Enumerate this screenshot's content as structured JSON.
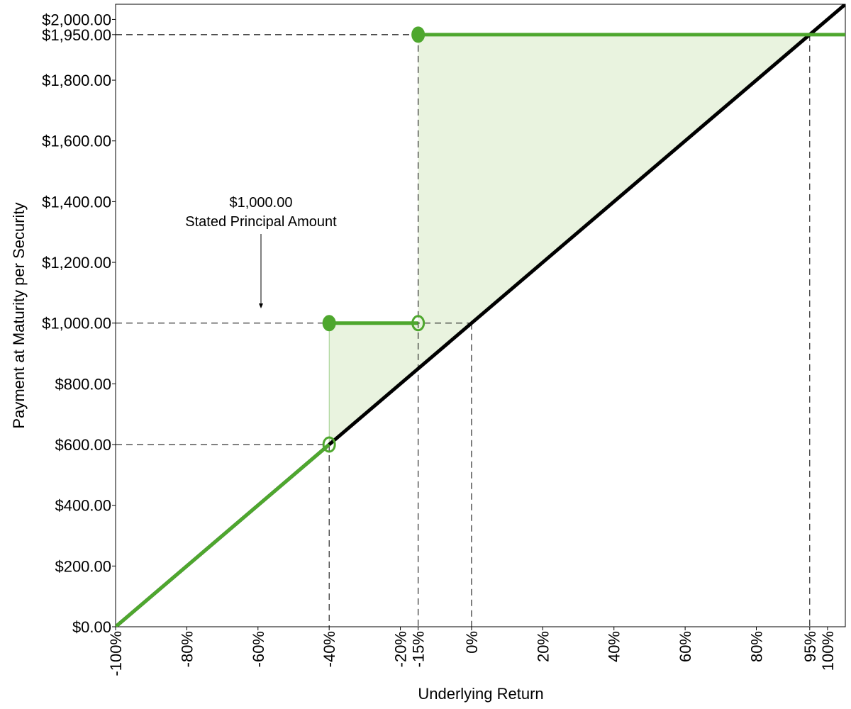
{
  "chart_data": {
    "type": "line",
    "x_label": "Underlying Return",
    "y_label": "Payment at Maturity per Security",
    "annotation": [
      "$1,000.00",
      "Stated Principal Amount"
    ],
    "xlim": [
      -100,
      105
    ],
    "ylim": [
      0,
      2050
    ],
    "xticks": [
      {
        "value": -100,
        "label": "-100%"
      },
      {
        "value": -80,
        "label": "-80%"
      },
      {
        "value": -60,
        "label": "-60%"
      },
      {
        "value": -40,
        "label": "-40%"
      },
      {
        "value": -20,
        "label": "-20%"
      },
      {
        "value": -15,
        "label": "-15%"
      },
      {
        "value": 0,
        "label": "0%"
      },
      {
        "value": 20,
        "label": "20%"
      },
      {
        "value": 40,
        "label": "40%"
      },
      {
        "value": 60,
        "label": "60%"
      },
      {
        "value": 80,
        "label": "80%"
      },
      {
        "value": 95,
        "label": "95%"
      },
      {
        "value": 100,
        "label": "100%"
      }
    ],
    "yticks": [
      {
        "value": 0,
        "label": "$0.00"
      },
      {
        "value": 200,
        "label": "$200.00"
      },
      {
        "value": 400,
        "label": "$400.00"
      },
      {
        "value": 600,
        "label": "$600.00"
      },
      {
        "value": 800,
        "label": "$800.00"
      },
      {
        "value": 1000,
        "label": "$1,000.00"
      },
      {
        "value": 1200,
        "label": "$1,200.00"
      },
      {
        "value": 1400,
        "label": "$1,400.00"
      },
      {
        "value": 1600,
        "label": "$1,600.00"
      },
      {
        "value": 1800,
        "label": "$1,800.00"
      },
      {
        "value": 1950,
        "label": "$1,950.00"
      },
      {
        "value": 2000,
        "label": "$2,000.00"
      }
    ],
    "series": [
      {
        "color": "#000000",
        "x": [
          -100,
          105
        ],
        "values": [
          0,
          2050
        ]
      },
      {
        "color": "#4ea72e",
        "x": [
          -100,
          -40,
          -40,
          -40,
          -15,
          -15,
          -15,
          105
        ],
        "values": [
          0,
          600,
          null,
          1000,
          1000,
          null,
          1950,
          1950
        ]
      }
    ],
    "markers": {
      "filled": {
        "x": [
          -40,
          -15
        ],
        "values": [
          1000,
          1950
        ]
      },
      "open": {
        "x": [
          -40,
          -15
        ],
        "values": [
          600,
          1000
        ]
      }
    },
    "reference_points": {
      "x": [
        -40,
        -15,
        0,
        95
      ],
      "values": [
        600,
        1950,
        1000,
        1950
      ]
    },
    "shade_color": "#e9f3df"
  }
}
